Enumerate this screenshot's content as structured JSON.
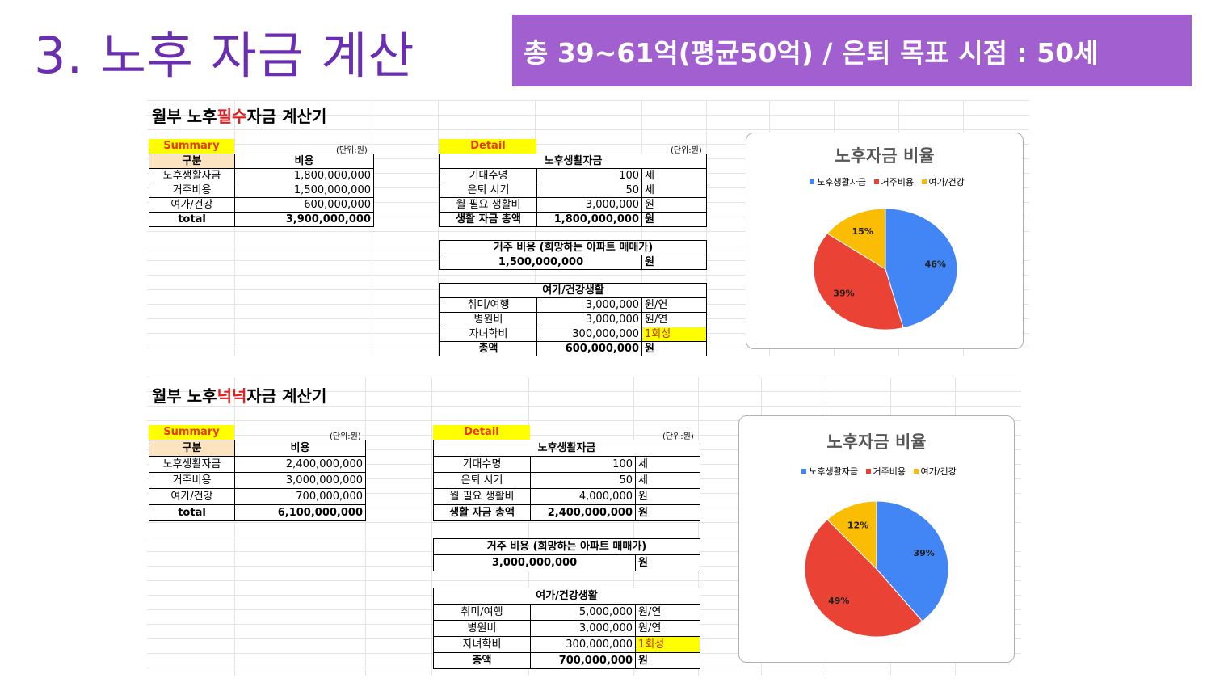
{
  "slide": {
    "title": "3. 노후 자금 계산",
    "banner": "총 39~61억(평균50억) / 은퇴 목표 시점  : 50세"
  },
  "sheets": [
    {
      "title_pre": "월부 노후",
      "title_red": "필수",
      "title_post": "자금 계산기",
      "summary_label": "Summary",
      "unit": "(단위:원)",
      "summary_headers": [
        "구분",
        "비용"
      ],
      "summary_rows": [
        [
          "노후생활자금",
          "1,800,000,000"
        ],
        [
          "거주비용",
          "1,500,000,000"
        ],
        [
          "여가/건강",
          "600,000,000"
        ],
        [
          "total",
          "3,900,000,000"
        ]
      ],
      "detail_label": "Detail",
      "detail_unit": "(단위:원)",
      "living_header": "노후생활자금",
      "living_rows": [
        [
          "기대수명",
          "100",
          "세"
        ],
        [
          "은퇴 시기",
          "50",
          "세"
        ],
        [
          "월 필요 생활비",
          "3,000,000",
          "원"
        ],
        [
          "생활 자금 총액",
          "1,800,000,000",
          "원"
        ]
      ],
      "house_header": "거주 비용 (희망하는 아파트 매매가)",
      "house_value": "1,500,000,000",
      "house_unit": "원",
      "leisure_header": "여가/건강생활",
      "leisure_rows": [
        [
          "취미/여행",
          "3,000,000",
          "원/연"
        ],
        [
          "병원비",
          "3,000,000",
          "원/연"
        ],
        [
          "자녀학비",
          "300,000,000",
          "1회성"
        ],
        [
          "총액",
          "600,000,000",
          "원"
        ]
      ],
      "chart_title": "노후자금 비율",
      "legend": [
        "노후생활자금",
        "거주비용",
        "여가/건강"
      ]
    },
    {
      "title_pre": "월부 노후",
      "title_red": "넉넉",
      "title_post": "자금 계산기",
      "summary_label": "Summary",
      "unit": "(단위:원)",
      "summary_headers": [
        "구분",
        "비용"
      ],
      "summary_rows": [
        [
          "노후생활자금",
          "2,400,000,000"
        ],
        [
          "거주비용",
          "3,000,000,000"
        ],
        [
          "여가/건강",
          "700,000,000"
        ],
        [
          "total",
          "6,100,000,000"
        ]
      ],
      "detail_label": "Detail",
      "detail_unit": "(단위:원)",
      "living_header": "노후생활자금",
      "living_rows": [
        [
          "기대수명",
          "100",
          "세"
        ],
        [
          "은퇴 시기",
          "50",
          "세"
        ],
        [
          "월 필요 생활비",
          "4,000,000",
          "원"
        ],
        [
          "생활 자금 총액",
          "2,400,000,000",
          "원"
        ]
      ],
      "house_header": "거주 비용 (희망하는 아파트 매매가)",
      "house_value": "3,000,000,000",
      "house_unit": "원",
      "leisure_header": "여가/건강생활",
      "leisure_rows": [
        [
          "취미/여행",
          "5,000,000",
          "원/연"
        ],
        [
          "병원비",
          "3,000,000",
          "원/연"
        ],
        [
          "자녀학비",
          "300,000,000",
          "1회성"
        ],
        [
          "총액",
          "700,000,000",
          "원"
        ]
      ],
      "chart_title": "노후자금 비율",
      "legend": [
        "노후생활자금",
        "거주비용",
        "여가/건강"
      ]
    }
  ],
  "colors": {
    "title": "#6a2fb0",
    "banner": "#a15fd0",
    "series": [
      "#4285f4",
      "#ea4335",
      "#fbbc04"
    ]
  },
  "chart_data": [
    {
      "type": "pie",
      "title": "노후자금 비율",
      "categories": [
        "노후생활자금",
        "거주비용",
        "여가/건강"
      ],
      "values": [
        46,
        39,
        15
      ],
      "labels": [
        "46%",
        "39%",
        "15%"
      ]
    },
    {
      "type": "pie",
      "title": "노후자금 비율",
      "categories": [
        "노후생활자금",
        "거주비용",
        "여가/건강"
      ],
      "values": [
        39,
        49,
        12
      ],
      "labels": [
        "39%",
        "49%",
        "12%"
      ]
    }
  ]
}
